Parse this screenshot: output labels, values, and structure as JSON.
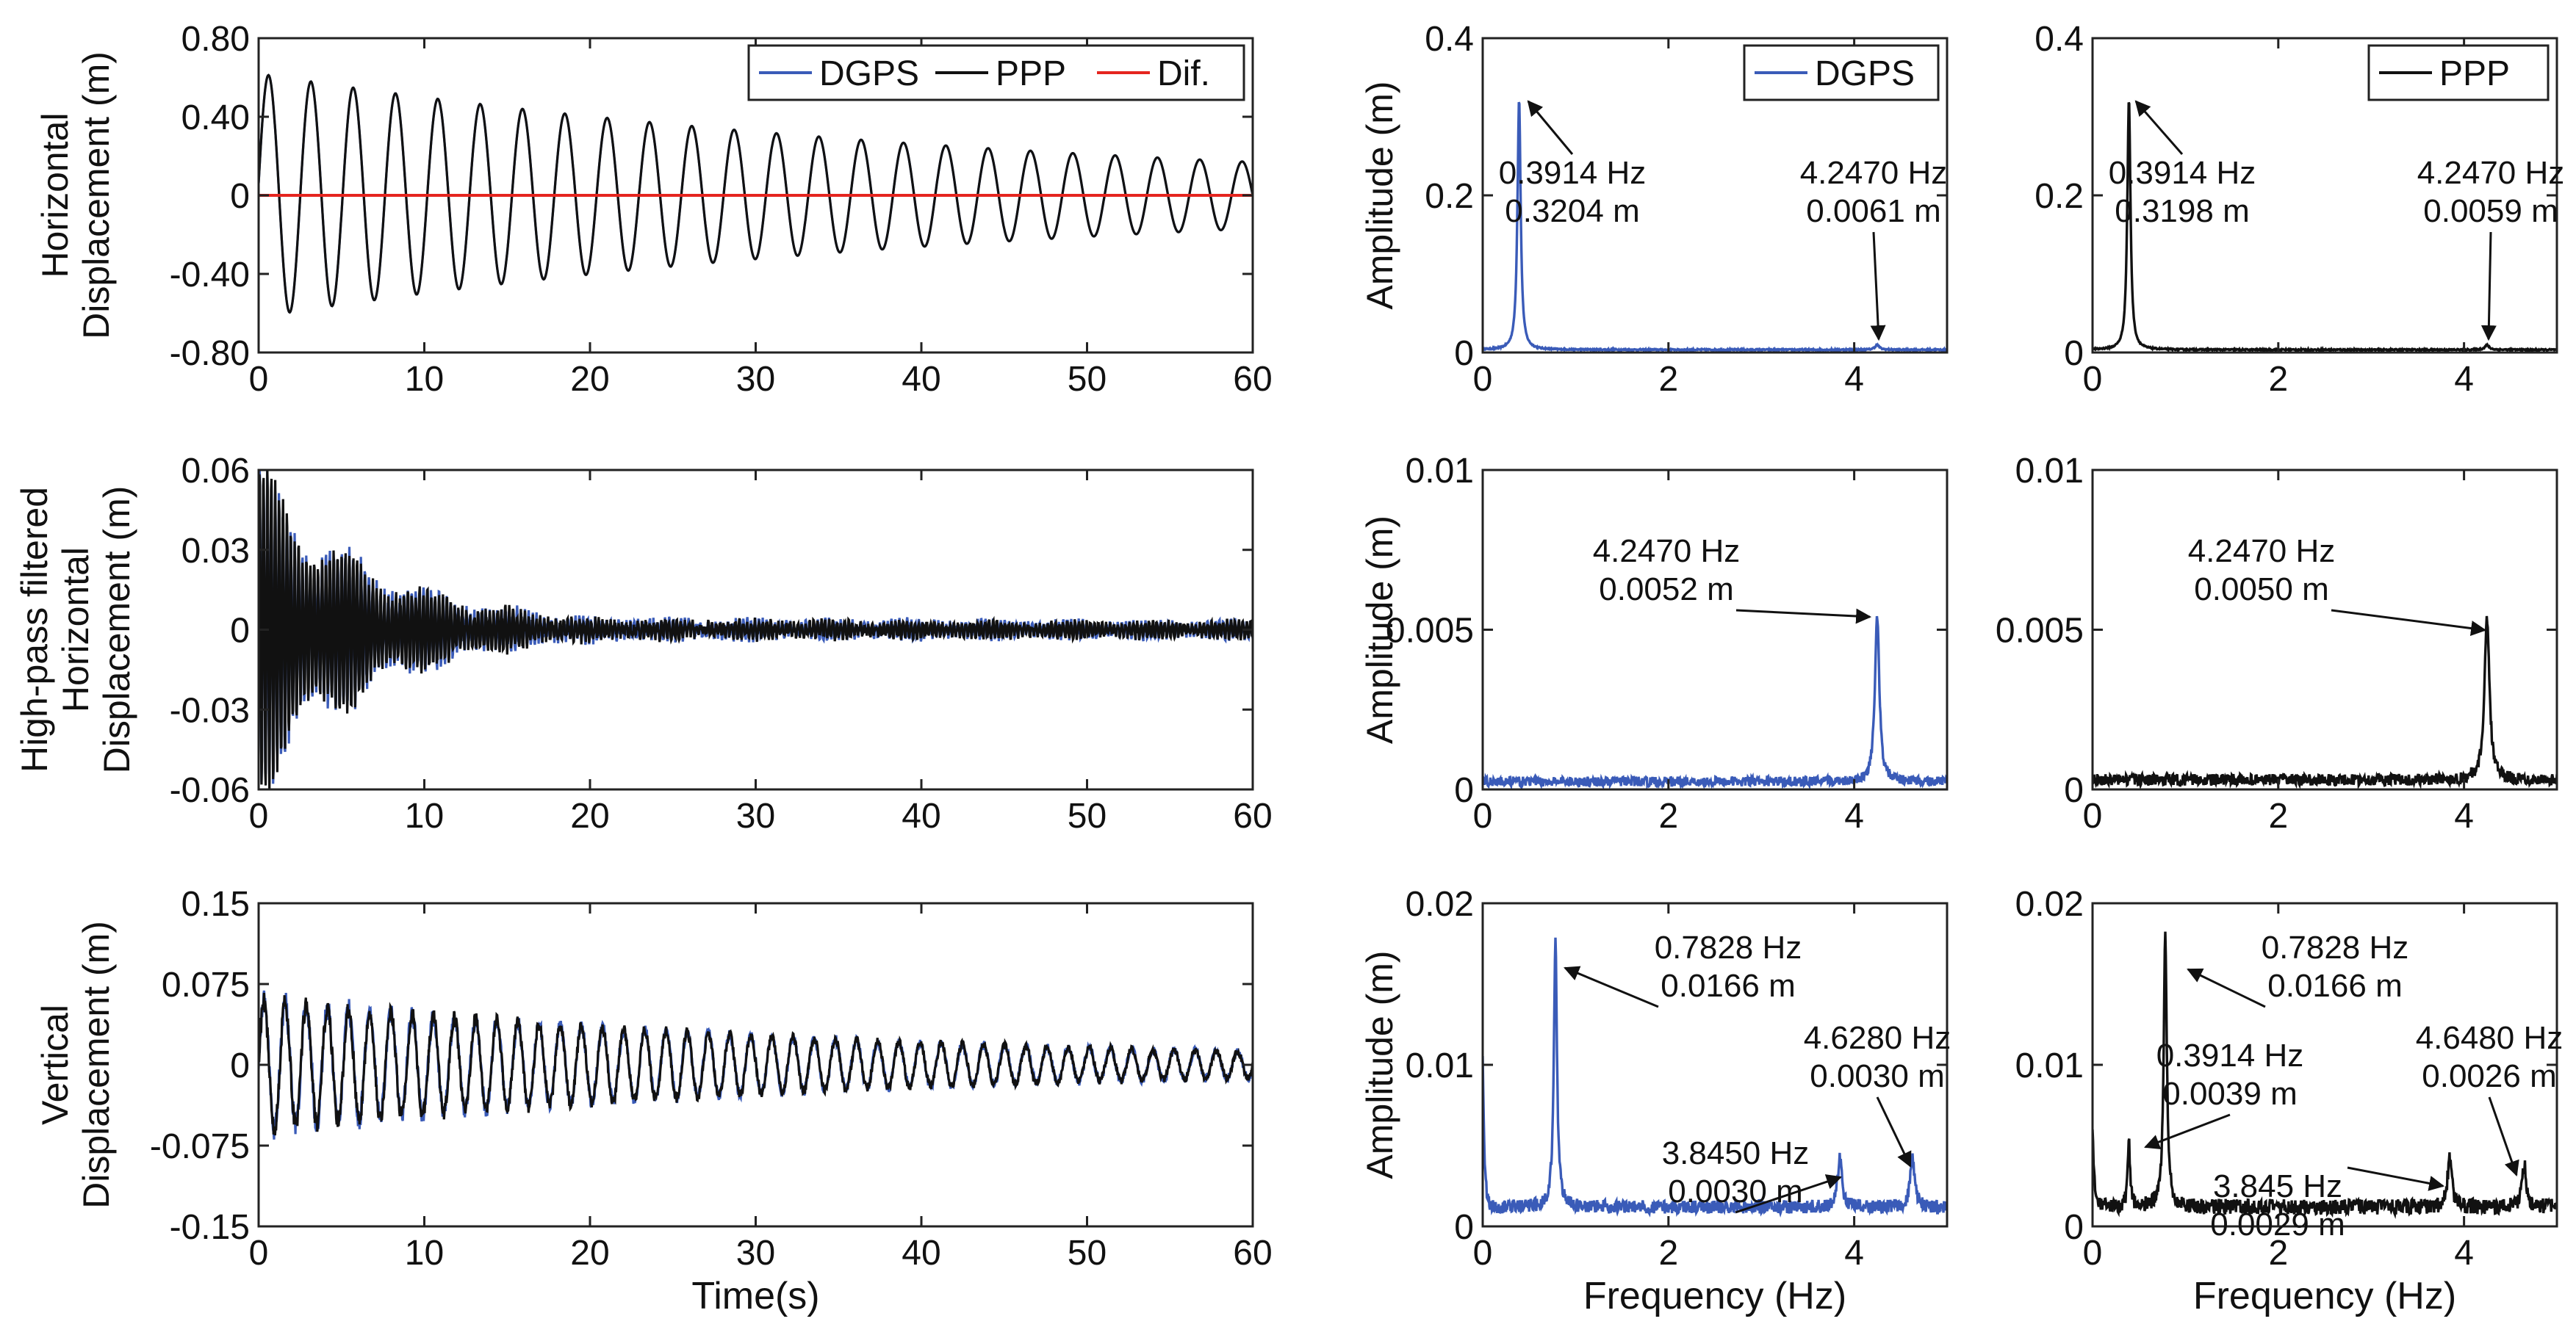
{
  "colors": {
    "dgps": "#3a5bb8",
    "ppp": "#111111",
    "dif": "#e5251f",
    "axis": "#222222"
  },
  "chart_data": [
    {
      "id": "h-time",
      "type": "line",
      "xlabel": "",
      "ylabel": [
        "Horizontal",
        "Displacement (m)"
      ],
      "xlim": [
        0,
        60
      ],
      "ylim": [
        -0.8,
        0.8
      ],
      "xticks": [
        0,
        10,
        20,
        30,
        40,
        50,
        60
      ],
      "xtick_labels": [
        "0",
        "10",
        "20",
        "30",
        "40",
        "50",
        "60"
      ],
      "yticks": [
        -0.8,
        -0.4,
        0,
        0.4,
        0.8
      ],
      "ytick_labels": [
        "-0.80",
        "-0.40",
        "0",
        "0.40",
        "0.80"
      ],
      "legend": [
        {
          "name": "DGPS",
          "color": "#3a5bb8"
        },
        {
          "name": "PPP",
          "color": "#111111"
        },
        {
          "name": "Dif.",
          "color": "#e5251f"
        }
      ],
      "legend_position": "top-right",
      "signal": {
        "kind": "decay",
        "freq": 0.3914,
        "amp": 0.62,
        "final_amp": 0.17,
        "phase": 0.1,
        "noise": 0.0,
        "n": 1500
      },
      "series": [
        {
          "name": "PPP",
          "color": "#111111"
        },
        {
          "name": "DGPS",
          "color": "#3a5bb8",
          "hidden_under": "PPP"
        },
        {
          "name": "Dif.",
          "color": "#e5251f",
          "values": "zero"
        }
      ],
      "annotations": []
    },
    {
      "id": "h-dgps-fft",
      "type": "line",
      "xlabel": "",
      "ylabel": [
        "Amplitude (m)"
      ],
      "xlim": [
        0,
        5
      ],
      "ylim": [
        0,
        0.4
      ],
      "xticks": [
        0,
        2,
        4
      ],
      "xtick_labels": [
        "0",
        "2",
        "4"
      ],
      "yticks": [
        0,
        0.2,
        0.4
      ],
      "ytick_labels": [
        "0",
        "0.2",
        "0.4"
      ],
      "legend": [
        {
          "name": "DGPS",
          "color": "#3a5bb8"
        }
      ],
      "legend_position": "top-right",
      "spectrum": {
        "color": "#3a5bb8",
        "floor": 0.0035,
        "noise": 0.0015,
        "peaks": [
          {
            "f": 0.3914,
            "a": 0.3204,
            "w": 0.05
          },
          {
            "f": 4.247,
            "a": 0.0061,
            "w": 0.07
          }
        ]
      },
      "annotations": [
        {
          "lines": [
            "0.3914 Hz",
            "0.3204 m"
          ],
          "peak": [
            0.3914,
            0.3204
          ]
        },
        {
          "lines": [
            "4.2470 Hz",
            "0.0061 m"
          ],
          "peak": [
            4.247,
            0.0061
          ]
        }
      ]
    },
    {
      "id": "h-ppp-fft",
      "type": "line",
      "xlabel": "",
      "ylabel": [],
      "xlim": [
        0,
        5
      ],
      "ylim": [
        0,
        0.4
      ],
      "xticks": [
        0,
        2,
        4
      ],
      "xtick_labels": [
        "0",
        "2",
        "4"
      ],
      "yticks": [
        0,
        0.2,
        0.4
      ],
      "ytick_labels": [
        "0",
        "0.2",
        "0.4"
      ],
      "legend": [
        {
          "name": "PPP",
          "color": "#111111"
        }
      ],
      "legend_position": "top-right",
      "spectrum": {
        "color": "#111111",
        "floor": 0.0035,
        "noise": 0.0015,
        "peaks": [
          {
            "f": 0.3914,
            "a": 0.3198,
            "w": 0.05
          },
          {
            "f": 4.247,
            "a": 0.0059,
            "w": 0.07
          }
        ]
      },
      "annotations": [
        {
          "lines": [
            "0.3914 Hz",
            "0.3198 m"
          ],
          "peak": [
            0.3914,
            0.3198
          ]
        },
        {
          "lines": [
            "4.2470 Hz",
            "0.0059 m"
          ],
          "peak": [
            4.247,
            0.0059
          ]
        }
      ]
    },
    {
      "id": "hp-time",
      "type": "line",
      "xlabel": "",
      "ylabel": [
        "High-pass filtered",
        "Horizontal",
        "Displacement (m)"
      ],
      "xlim": [
        0,
        60
      ],
      "ylim": [
        -0.06,
        0.06
      ],
      "xticks": [
        0,
        10,
        20,
        30,
        40,
        50,
        60
      ],
      "xtick_labels": [
        "0",
        "10",
        "20",
        "30",
        "40",
        "50",
        "60"
      ],
      "yticks": [
        -0.06,
        -0.03,
        0,
        0.03,
        0.06
      ],
      "ytick_labels": [
        "-0.06",
        "-0.03",
        "0",
        "0.03",
        "0.06"
      ],
      "legend": [],
      "signal": {
        "kind": "decay",
        "freq": 4.247,
        "amp": 0.05,
        "final_amp": 0.0025,
        "tau": 7,
        "noise": 0.003,
        "n": 2400
      },
      "series": [
        {
          "name": "DGPS",
          "color": "#3a5bb8"
        },
        {
          "name": "PPP",
          "color": "#111111"
        }
      ],
      "annotations": []
    },
    {
      "id": "hp-dgps-fft",
      "type": "line",
      "xlabel": "",
      "ylabel": [
        "Amplitude (m)"
      ],
      "xlim": [
        0,
        5
      ],
      "ylim": [
        0,
        0.01
      ],
      "xticks": [
        0,
        2,
        4
      ],
      "xtick_labels": [
        "0",
        "2",
        "4"
      ],
      "yticks": [
        0,
        0.005,
        0.01
      ],
      "ytick_labels": [
        "0",
        "0.005",
        "0.01"
      ],
      "legend": [],
      "spectrum": {
        "color": "#3a5bb8",
        "floor": 0.00025,
        "noise": 0.00025,
        "peaks": [
          {
            "f": 4.247,
            "a": 0.0052,
            "w": 0.07
          }
        ]
      },
      "annotations": [
        {
          "lines": [
            "4.2470 Hz",
            "0.0052 m"
          ],
          "peak": [
            4.247,
            0.0052
          ]
        }
      ]
    },
    {
      "id": "hp-ppp-fft",
      "type": "line",
      "xlabel": "",
      "ylabel": [],
      "xlim": [
        0,
        5
      ],
      "ylim": [
        0,
        0.01
      ],
      "xticks": [
        0,
        2,
        4
      ],
      "xtick_labels": [
        "0",
        "2",
        "4"
      ],
      "yticks": [
        0,
        0.005,
        0.01
      ],
      "ytick_labels": [
        "0",
        "0.005",
        "0.01"
      ],
      "legend": [],
      "spectrum": {
        "color": "#111111",
        "floor": 0.0003,
        "noise": 0.0003,
        "peaks": [
          {
            "f": 4.247,
            "a": 0.005,
            "w": 0.08
          }
        ]
      },
      "annotations": [
        {
          "lines": [
            "4.2470 Hz",
            "0.0050 m"
          ],
          "peak": [
            4.247,
            0.005
          ]
        }
      ]
    },
    {
      "id": "v-time",
      "type": "line",
      "xlabel": "Time(s)",
      "ylabel": [
        "Vertical",
        "Displacement (m)"
      ],
      "xlim": [
        0,
        60
      ],
      "ylim": [
        -0.15,
        0.15
      ],
      "xticks": [
        0,
        10,
        20,
        30,
        40,
        50,
        60
      ],
      "xtick_labels": [
        "0",
        "10",
        "20",
        "30",
        "40",
        "50",
        "60"
      ],
      "yticks": [
        -0.15,
        -0.075,
        0,
        0.075,
        0.15
      ],
      "ytick_labels": [
        "-0.15",
        "-0.075",
        "0",
        "0.075",
        "0.15"
      ],
      "legend": [],
      "signal": {
        "kind": "decay",
        "freq": 0.7828,
        "amp": 0.06,
        "final_amp": 0.012,
        "noise": 0.008,
        "n": 2000
      },
      "series": [
        {
          "name": "DGPS",
          "color": "#3a5bb8"
        },
        {
          "name": "PPP",
          "color": "#111111"
        }
      ],
      "annotations": []
    },
    {
      "id": "v-dgps-fft",
      "type": "line",
      "xlabel": "Frequency (Hz)",
      "ylabel": [
        "Amplitude (m)"
      ],
      "xlim": [
        0,
        5
      ],
      "ylim": [
        0,
        0.02
      ],
      "xticks": [
        0,
        2,
        4
      ],
      "xtick_labels": [
        "0",
        "2",
        "4"
      ],
      "yticks": [
        0,
        0.01,
        0.02
      ],
      "ytick_labels": [
        "0",
        "0.01",
        "0.02"
      ],
      "legend": [],
      "spectrum": {
        "color": "#3a5bb8",
        "floor": 0.0012,
        "noise": 0.0007,
        "dc": 0.009,
        "peaks": [
          {
            "f": 0.7828,
            "a": 0.0166,
            "w": 0.05
          },
          {
            "f": 3.845,
            "a": 0.003,
            "w": 0.07
          },
          {
            "f": 4.628,
            "a": 0.003,
            "w": 0.07
          }
        ]
      },
      "annotations": [
        {
          "lines": [
            "0.7828 Hz",
            "0.0166 m"
          ],
          "peak": [
            0.7828,
            0.0166
          ]
        },
        {
          "lines": [
            "4.6280 Hz",
            "0.0030 m"
          ],
          "peak": [
            4.628,
            0.003
          ]
        },
        {
          "lines": [
            "3.8450 Hz",
            "0.0030 m"
          ],
          "peak": [
            3.845,
            0.003
          ]
        }
      ]
    },
    {
      "id": "v-ppp-fft",
      "type": "line",
      "xlabel": "Frequency (Hz)",
      "ylabel": [],
      "xlim": [
        0,
        5
      ],
      "ylim": [
        0,
        0.02
      ],
      "xticks": [
        0,
        2,
        4
      ],
      "xtick_labels": [
        "0",
        "2",
        "4"
      ],
      "yticks": [
        0,
        0.01,
        0.02
      ],
      "ytick_labels": [
        "0",
        "0.01",
        "0.02"
      ],
      "legend": [],
      "spectrum": {
        "color": "#111111",
        "floor": 0.0012,
        "noise": 0.0008,
        "dc": 0.005,
        "peaks": [
          {
            "f": 0.3914,
            "a": 0.0039,
            "w": 0.04
          },
          {
            "f": 0.7828,
            "a": 0.0166,
            "w": 0.05
          },
          {
            "f": 3.845,
            "a": 0.0029,
            "w": 0.07
          },
          {
            "f": 4.648,
            "a": 0.0026,
            "w": 0.07
          }
        ]
      },
      "annotations": [
        {
          "lines": [
            "0.7828 Hz",
            "0.0166 m"
          ],
          "peak": [
            0.7828,
            0.0166
          ]
        },
        {
          "lines": [
            "0.3914 Hz",
            "0.0039 m"
          ],
          "peak": [
            0.3914,
            0.0039
          ]
        },
        {
          "lines": [
            "4.6480 Hz",
            "0.0026 m"
          ],
          "peak": [
            4.648,
            0.0026
          ]
        },
        {
          "lines": [
            "3.845 Hz",
            "0.0029 m"
          ],
          "peak": [
            3.845,
            0.0029
          ]
        }
      ]
    }
  ]
}
